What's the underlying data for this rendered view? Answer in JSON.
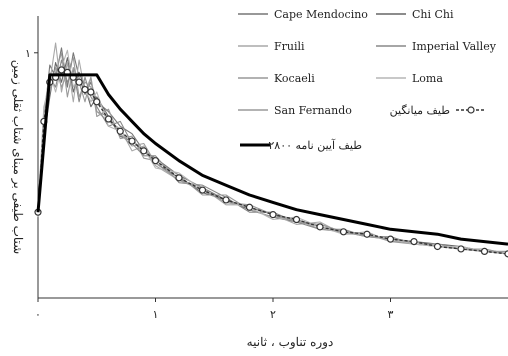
{
  "chart_data": {
    "type": "line",
    "xlabel": "دوره تناوب ، ثانیه",
    "ylabel": "شتاب طیفی بر مبنای شتاب ثقلی زمین",
    "xlim": [
      0,
      4
    ],
    "ylim": [
      0,
      1.15
    ],
    "x_ticks": [
      {
        "value": 0,
        "label": "۰"
      },
      {
        "value": 1,
        "label": "۱"
      },
      {
        "value": 2,
        "label": "۲"
      },
      {
        "value": 3,
        "label": "۳"
      }
    ],
    "y_ticks": [
      {
        "value": 1,
        "label": "۱"
      }
    ],
    "legend_position": "top-right",
    "series": [
      {
        "name": "Cape Mendocino",
        "color": "#777777",
        "style": "solid",
        "x": [
          0,
          0.05,
          0.1,
          0.15,
          0.2,
          0.25,
          0.3,
          0.35,
          0.4,
          0.45,
          0.5,
          0.6,
          0.7,
          0.8,
          0.9,
          1.0,
          1.2,
          1.4,
          1.6,
          1.8,
          2.0,
          2.2,
          2.4,
          2.6,
          2.8,
          3.0,
          3.2,
          3.4,
          3.6,
          3.8,
          4.0
        ],
        "y": [
          0.35,
          0.72,
          0.95,
          0.9,
          1.02,
          0.86,
          1.0,
          0.9,
          0.83,
          0.88,
          0.8,
          0.76,
          0.7,
          0.67,
          0.6,
          0.57,
          0.5,
          0.45,
          0.4,
          0.37,
          0.34,
          0.32,
          0.29,
          0.27,
          0.25,
          0.24,
          0.22,
          0.21,
          0.2,
          0.19,
          0.18
        ]
      },
      {
        "name": "Chi Chi",
        "color": "#666666",
        "style": "solid",
        "x": [
          0,
          0.05,
          0.1,
          0.15,
          0.2,
          0.25,
          0.3,
          0.35,
          0.4,
          0.45,
          0.5,
          0.6,
          0.7,
          0.8,
          0.9,
          1.0,
          1.2,
          1.4,
          1.6,
          1.8,
          2.0,
          2.2,
          2.4,
          2.6,
          2.8,
          3.0,
          3.2,
          3.4,
          3.6,
          3.8,
          4.0
        ],
        "y": [
          0.34,
          0.65,
          0.82,
          0.96,
          0.88,
          0.98,
          0.84,
          0.92,
          0.86,
          0.78,
          0.82,
          0.74,
          0.66,
          0.64,
          0.6,
          0.55,
          0.49,
          0.43,
          0.4,
          0.36,
          0.33,
          0.31,
          0.3,
          0.27,
          0.26,
          0.24,
          0.23,
          0.22,
          0.21,
          0.19,
          0.18
        ]
      },
      {
        "name": "Fruili",
        "color": "#a8a8a8",
        "style": "solid",
        "x": [
          0,
          0.05,
          0.1,
          0.15,
          0.2,
          0.25,
          0.3,
          0.35,
          0.4,
          0.45,
          0.5,
          0.6,
          0.7,
          0.8,
          0.9,
          1.0,
          1.2,
          1.4,
          1.6,
          1.8,
          2.0,
          2.2,
          2.4,
          2.6,
          2.8,
          3.0,
          3.2,
          3.4,
          3.6,
          3.8,
          4.0
        ],
        "y": [
          0.36,
          0.78,
          0.88,
          1.04,
          0.84,
          0.96,
          0.8,
          0.97,
          0.84,
          0.9,
          0.76,
          0.72,
          0.69,
          0.6,
          0.62,
          0.54,
          0.48,
          0.45,
          0.38,
          0.38,
          0.34,
          0.3,
          0.31,
          0.26,
          0.27,
          0.23,
          0.23,
          0.21,
          0.21,
          0.19,
          0.19
        ]
      },
      {
        "name": "Imperial Valley",
        "color": "#888888",
        "style": "solid",
        "x": [
          0,
          0.05,
          0.1,
          0.15,
          0.2,
          0.25,
          0.3,
          0.35,
          0.4,
          0.45,
          0.5,
          0.6,
          0.7,
          0.8,
          0.9,
          1.0,
          1.2,
          1.4,
          1.6,
          1.8,
          2.0,
          2.2,
          2.4,
          2.6,
          2.8,
          3.0,
          3.2,
          3.4,
          3.6,
          3.8,
          4.0
        ],
        "y": [
          0.33,
          0.7,
          0.9,
          0.86,
          0.97,
          0.88,
          0.93,
          0.8,
          0.9,
          0.82,
          0.78,
          0.7,
          0.72,
          0.63,
          0.58,
          0.58,
          0.47,
          0.46,
          0.41,
          0.35,
          0.35,
          0.31,
          0.28,
          0.28,
          0.25,
          0.25,
          0.22,
          0.22,
          0.2,
          0.2,
          0.18
        ]
      },
      {
        "name": "Kocaeli",
        "color": "#999999",
        "style": "solid",
        "x": [
          0,
          0.05,
          0.1,
          0.15,
          0.2,
          0.25,
          0.3,
          0.35,
          0.4,
          0.45,
          0.5,
          0.6,
          0.7,
          0.8,
          0.9,
          1.0,
          1.2,
          1.4,
          1.6,
          1.8,
          2.0,
          2.2,
          2.4,
          2.6,
          2.8,
          3.0,
          3.2,
          3.4,
          3.6,
          3.8,
          4.0
        ],
        "y": [
          0.35,
          0.74,
          0.84,
          0.92,
          1.0,
          0.82,
          0.94,
          0.88,
          0.8,
          0.9,
          0.74,
          0.77,
          0.65,
          0.66,
          0.57,
          0.56,
          0.5,
          0.42,
          0.42,
          0.36,
          0.33,
          0.32,
          0.28,
          0.27,
          0.26,
          0.23,
          0.22,
          0.22,
          0.2,
          0.19,
          0.19
        ]
      },
      {
        "name": "Loma",
        "color": "#b5b5b5",
        "style": "solid",
        "x": [
          0,
          0.05,
          0.1,
          0.15,
          0.2,
          0.25,
          0.3,
          0.35,
          0.4,
          0.45,
          0.5,
          0.6,
          0.7,
          0.8,
          0.9,
          1.0,
          1.2,
          1.4,
          1.6,
          1.8,
          2.0,
          2.2,
          2.4,
          2.6,
          2.8,
          3.0,
          3.2,
          3.4,
          3.6,
          3.8,
          4.0
        ],
        "y": [
          0.34,
          0.76,
          0.92,
          0.84,
          0.94,
          1.01,
          0.86,
          0.9,
          0.85,
          0.8,
          0.84,
          0.7,
          0.68,
          0.64,
          0.61,
          0.53,
          0.51,
          0.44,
          0.39,
          0.37,
          0.32,
          0.33,
          0.29,
          0.26,
          0.26,
          0.24,
          0.22,
          0.21,
          0.21,
          0.19,
          0.18
        ]
      },
      {
        "name": "San Fernando",
        "color": "#9a9a9a",
        "style": "solid",
        "x": [
          0,
          0.05,
          0.1,
          0.15,
          0.2,
          0.25,
          0.3,
          0.35,
          0.4,
          0.45,
          0.5,
          0.6,
          0.7,
          0.8,
          0.9,
          1.0,
          1.2,
          1.4,
          1.6,
          1.8,
          2.0,
          2.2,
          2.4,
          2.6,
          2.8,
          3.0,
          3.2,
          3.4,
          3.6,
          3.8,
          4.0
        ],
        "y": [
          0.36,
          0.68,
          0.86,
          0.94,
          0.86,
          0.92,
          0.98,
          0.82,
          0.88,
          0.86,
          0.76,
          0.74,
          0.67,
          0.62,
          0.63,
          0.55,
          0.48,
          0.44,
          0.39,
          0.38,
          0.34,
          0.31,
          0.3,
          0.27,
          0.25,
          0.24,
          0.23,
          0.21,
          0.2,
          0.2,
          0.18
        ]
      },
      {
        "name": "طیف میانگین",
        "color": "#333333",
        "style": "mean",
        "x": [
          0,
          0.05,
          0.1,
          0.15,
          0.2,
          0.25,
          0.3,
          0.35,
          0.4,
          0.45,
          0.5,
          0.6,
          0.7,
          0.8,
          0.9,
          1.0,
          1.2,
          1.4,
          1.6,
          1.8,
          2.0,
          2.2,
          2.4,
          2.6,
          2.8,
          3.0,
          3.2,
          3.4,
          3.6,
          3.8,
          4.0
        ],
        "y": [
          0.35,
          0.72,
          0.88,
          0.9,
          0.93,
          0.92,
          0.9,
          0.88,
          0.85,
          0.84,
          0.8,
          0.73,
          0.68,
          0.64,
          0.6,
          0.56,
          0.49,
          0.44,
          0.4,
          0.37,
          0.34,
          0.32,
          0.29,
          0.27,
          0.26,
          0.24,
          0.23,
          0.21,
          0.2,
          0.19,
          0.18
        ]
      },
      {
        "name": "طیف آیین نامه ۲۸۰۰",
        "color": "#000000",
        "style": "bold",
        "x": [
          0,
          0.1,
          0.5,
          0.6,
          0.7,
          0.8,
          0.9,
          1.0,
          1.2,
          1.4,
          1.6,
          1.8,
          2.0,
          2.2,
          2.4,
          2.6,
          2.8,
          3.0,
          3.2,
          3.4,
          3.6,
          3.8,
          4.0
        ],
        "y": [
          0.35,
          0.91,
          0.91,
          0.83,
          0.77,
          0.72,
          0.67,
          0.63,
          0.56,
          0.5,
          0.46,
          0.42,
          0.39,
          0.36,
          0.34,
          0.32,
          0.3,
          0.28,
          0.27,
          0.26,
          0.24,
          0.23,
          0.22
        ]
      }
    ]
  }
}
